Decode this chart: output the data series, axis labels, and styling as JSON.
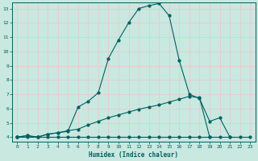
{
  "xlabel": "Humidex (Indice chaleur)",
  "xlim": [
    -0.5,
    23.5
  ],
  "ylim": [
    3.7,
    13.4
  ],
  "yticks": [
    4,
    5,
    6,
    7,
    8,
    9,
    10,
    11,
    12,
    13
  ],
  "xticks": [
    0,
    1,
    2,
    3,
    4,
    5,
    6,
    7,
    8,
    9,
    10,
    11,
    12,
    13,
    14,
    15,
    16,
    17,
    18,
    19,
    20,
    21,
    22,
    23
  ],
  "bg_color": "#c8e8e0",
  "grid_color": "#e8c8c8",
  "line_color": "#006060",
  "series1_x": [
    0,
    1,
    2,
    3,
    4,
    5,
    6,
    7,
    8,
    9,
    10,
    11,
    12,
    13,
    14,
    15,
    16,
    17,
    18,
    19,
    20,
    21
  ],
  "series1_y": [
    4.0,
    4.1,
    4.0,
    4.2,
    4.3,
    4.4,
    6.1,
    6.5,
    7.1,
    9.5,
    10.8,
    12.0,
    13.0,
    13.2,
    13.35,
    12.5,
    9.35,
    7.0,
    6.7,
    5.1,
    5.35,
    4.0
  ],
  "series2_x": [
    0,
    1,
    2,
    3,
    4,
    5,
    6,
    7,
    8,
    9,
    10,
    11,
    12,
    13,
    14,
    15,
    16,
    17,
    18,
    19
  ],
  "series2_y": [
    4.0,
    4.1,
    4.0,
    4.2,
    4.3,
    4.45,
    4.55,
    4.85,
    5.1,
    5.35,
    5.55,
    5.75,
    5.95,
    6.1,
    6.25,
    6.45,
    6.65,
    6.85,
    6.75,
    4.0
  ],
  "series3_x": [
    0,
    1,
    2,
    3,
    4,
    5,
    6,
    7,
    8,
    9,
    10,
    11,
    12,
    13,
    14,
    15,
    16,
    17,
    18,
    19,
    20,
    21,
    22,
    23
  ],
  "series3_y": [
    4.0,
    4.0,
    4.0,
    4.0,
    4.0,
    4.0,
    4.0,
    4.0,
    4.0,
    4.0,
    4.0,
    4.0,
    4.0,
    4.0,
    4.0,
    4.0,
    4.0,
    4.0,
    4.0,
    4.0,
    4.0,
    4.0,
    4.0,
    4.0
  ]
}
